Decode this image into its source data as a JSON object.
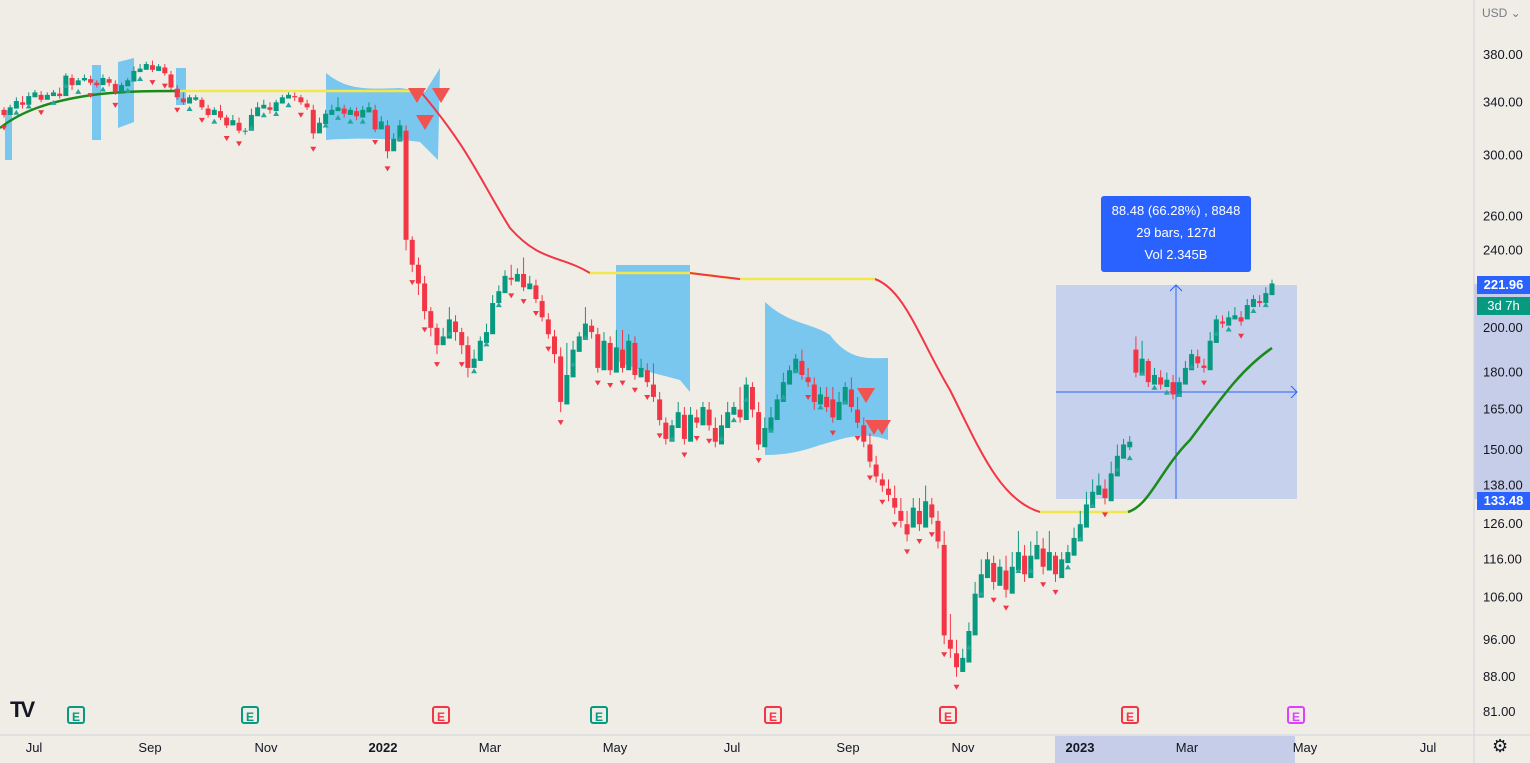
{
  "currency_label": "USD",
  "chart_data": {
    "type": "candlestick",
    "y_ticks": [
      380,
      340,
      300,
      260,
      240,
      200,
      180,
      165,
      150,
      138,
      126,
      116,
      106,
      96,
      88,
      81
    ],
    "y_tick_labels": [
      "380.00",
      "340.00",
      "300.00",
      "260.00",
      "240.00",
      "200.00",
      "180.00",
      "165.00",
      "150.00",
      "138.00",
      "126.00",
      "116.00",
      "106.00",
      "96.00",
      "88.00",
      "81.00"
    ],
    "x_ticks": [
      "Jul",
      "Sep",
      "Nov",
      "2022",
      "Mar",
      "May",
      "Jul",
      "Sep",
      "Nov",
      "2023",
      "Mar",
      "May",
      "Jul"
    ],
    "last_price": "221.96",
    "countdown": "3d 7h",
    "range_low_label": "133.48",
    "measure": {
      "line1": "88.48 (66.28%) , 8848",
      "line2": "29 bars, 127d",
      "line3": "Vol 2.345B",
      "from": 133.48,
      "to": 221.96
    },
    "earnings_markers": [
      "E",
      "E",
      "E",
      "E",
      "E",
      "E",
      "E",
      "E"
    ],
    "candles": [
      [
        334,
        330,
        328,
        336
      ],
      [
        330,
        336,
        333,
        338
      ],
      [
        335,
        341,
        338,
        344
      ],
      [
        340,
        338,
        335,
        345
      ],
      [
        338,
        345,
        343,
        348
      ],
      [
        344,
        348,
        346,
        350
      ],
      [
        346,
        342,
        340,
        349
      ],
      [
        342,
        346,
        343,
        348
      ],
      [
        345,
        348,
        346,
        350
      ],
      [
        347,
        345,
        343,
        352
      ],
      [
        345,
        362,
        360,
        364
      ],
      [
        360,
        354,
        350,
        363
      ],
      [
        354,
        358,
        355,
        360
      ],
      [
        358,
        360,
        357,
        363
      ],
      [
        359,
        356,
        354,
        362
      ],
      [
        356,
        354,
        352,
        358
      ],
      [
        354,
        360,
        357,
        363
      ],
      [
        359,
        356,
        353,
        361
      ],
      [
        355,
        348,
        346,
        358
      ],
      [
        348,
        354,
        352,
        356
      ],
      [
        353,
        358,
        356,
        360
      ],
      [
        357,
        366,
        363,
        370
      ],
      [
        365,
        368,
        366,
        372
      ],
      [
        367,
        372,
        369,
        374
      ],
      [
        371,
        367,
        365,
        375
      ],
      [
        366,
        370,
        368,
        372
      ],
      [
        369,
        364,
        362,
        372
      ],
      [
        363,
        352,
        350,
        366
      ],
      [
        351,
        344,
        342,
        354
      ],
      [
        343,
        340,
        338,
        348
      ],
      [
        339,
        344,
        341,
        346
      ],
      [
        342,
        344,
        341,
        346
      ],
      [
        342,
        336,
        334,
        344
      ],
      [
        335,
        330,
        328,
        338
      ],
      [
        330,
        334,
        331,
        336
      ],
      [
        333,
        328,
        326,
        338
      ],
      [
        328,
        322,
        320,
        330
      ],
      [
        322,
        326,
        324,
        330
      ],
      [
        324,
        318,
        316,
        328
      ],
      [
        318,
        318,
        315,
        320
      ],
      [
        318,
        330,
        326,
        335
      ],
      [
        329,
        336,
        333,
        340
      ],
      [
        335,
        338,
        336,
        342
      ],
      [
        336,
        334,
        331,
        340
      ],
      [
        333,
        340,
        337,
        342
      ],
      [
        339,
        344,
        341,
        346
      ],
      [
        343,
        346,
        344,
        348
      ],
      [
        345,
        344,
        341,
        348
      ],
      [
        344,
        340,
        338,
        346
      ],
      [
        339,
        336,
        334,
        342
      ],
      [
        334,
        316,
        312,
        338
      ],
      [
        316,
        324,
        321,
        328
      ],
      [
        323,
        331,
        328,
        334
      ],
      [
        330,
        334,
        331,
        338
      ],
      [
        333,
        336,
        334,
        344
      ],
      [
        335,
        331,
        328,
        338
      ],
      [
        330,
        334,
        331,
        336
      ],
      [
        333,
        329,
        326,
        336
      ],
      [
        328,
        334,
        331,
        337
      ],
      [
        332,
        336,
        334,
        340
      ],
      [
        334,
        319,
        317,
        338
      ],
      [
        319,
        325,
        322,
        329
      ],
      [
        322,
        303,
        298,
        326
      ],
      [
        303,
        312,
        309,
        316
      ],
      [
        310,
        322,
        318,
        326
      ],
      [
        318,
        246,
        240,
        322
      ],
      [
        246,
        232,
        228,
        248
      ],
      [
        232,
        222,
        216,
        236
      ],
      [
        222,
        208,
        204,
        226
      ],
      [
        208,
        200,
        196,
        210
      ],
      [
        200,
        192,
        188,
        202
      ],
      [
        192,
        196,
        194,
        200
      ],
      [
        195,
        204,
        201,
        210
      ],
      [
        203,
        198,
        194,
        206
      ],
      [
        198,
        192,
        188,
        200
      ],
      [
        192,
        182,
        178,
        196
      ],
      [
        182,
        186,
        184,
        190
      ],
      [
        185,
        194,
        191,
        196
      ],
      [
        193,
        198,
        196,
        202
      ],
      [
        197,
        212,
        209,
        216
      ],
      [
        212,
        218,
        215,
        221
      ],
      [
        217,
        226,
        223,
        229
      ],
      [
        225,
        224,
        221,
        232
      ],
      [
        223,
        227,
        225,
        230
      ],
      [
        227,
        220,
        218,
        236
      ],
      [
        219,
        222,
        219,
        226
      ],
      [
        221,
        214,
        212,
        224
      ],
      [
        213,
        205,
        203,
        216
      ],
      [
        204,
        197,
        195,
        207
      ],
      [
        196,
        188,
        184,
        199
      ],
      [
        187,
        168,
        164,
        191
      ],
      [
        167,
        179,
        176,
        193
      ],
      [
        178,
        190,
        187,
        194
      ],
      [
        189,
        196,
        193,
        198
      ],
      [
        195,
        202,
        199,
        210
      ],
      [
        201,
        198,
        195,
        204
      ],
      [
        197,
        182,
        180,
        200
      ],
      [
        181,
        194,
        191,
        198
      ],
      [
        193,
        181,
        179,
        196
      ],
      [
        180,
        191,
        188,
        199
      ],
      [
        190,
        182,
        180,
        199
      ],
      [
        181,
        194,
        191,
        197
      ],
      [
        193,
        179,
        177,
        196
      ],
      [
        178,
        182,
        179,
        186
      ],
      [
        181,
        176,
        174,
        184
      ],
      [
        175,
        170,
        168,
        184
      ],
      [
        169,
        161,
        159,
        172
      ],
      [
        160,
        154,
        152,
        162
      ],
      [
        153,
        159,
        157,
        161
      ],
      [
        158,
        164,
        161,
        168
      ],
      [
        163,
        154,
        152,
        166
      ],
      [
        153,
        163,
        161,
        166
      ],
      [
        162,
        160,
        158,
        165
      ],
      [
        159,
        166,
        163,
        168
      ],
      [
        165,
        159,
        157,
        168
      ],
      [
        158,
        153,
        151,
        162
      ],
      [
        152,
        159,
        157,
        163
      ],
      [
        158,
        164,
        162,
        168
      ],
      [
        163,
        166,
        164,
        168
      ],
      [
        165,
        162,
        160,
        174
      ],
      [
        161,
        175,
        172,
        178
      ],
      [
        174,
        165,
        162,
        176
      ],
      [
        164,
        152,
        150,
        168
      ],
      [
        151,
        158,
        156,
        162
      ],
      [
        157,
        162,
        160,
        166
      ],
      [
        161,
        169,
        166,
        171
      ],
      [
        168,
        176,
        173,
        180
      ],
      [
        175,
        181,
        178,
        183
      ],
      [
        180,
        186,
        184,
        188
      ],
      [
        185,
        179,
        177,
        190
      ],
      [
        178,
        176,
        174,
        182
      ],
      [
        175,
        168,
        165,
        178
      ],
      [
        167,
        171,
        169,
        174
      ],
      [
        170,
        166,
        164,
        174
      ],
      [
        169,
        162,
        160,
        174
      ],
      [
        161,
        168,
        166,
        172
      ],
      [
        167,
        174,
        171,
        176
      ],
      [
        173,
        166,
        164,
        178
      ],
      [
        165,
        160,
        158,
        170
      ],
      [
        159,
        153,
        151,
        162
      ],
      [
        152,
        146,
        144,
        156
      ],
      [
        145,
        141,
        139,
        148
      ],
      [
        140,
        138,
        136,
        142
      ],
      [
        137,
        135,
        133,
        140
      ],
      [
        134,
        131,
        129,
        138
      ],
      [
        130,
        127,
        125,
        134
      ],
      [
        126,
        123,
        121,
        130
      ],
      [
        125,
        131,
        128,
        134
      ],
      [
        130,
        126,
        124,
        134
      ],
      [
        125,
        133,
        130,
        138
      ],
      [
        132,
        128,
        126,
        134
      ],
      [
        127,
        121,
        119,
        130
      ],
      [
        120,
        97,
        95,
        124
      ],
      [
        96,
        94,
        92,
        102
      ],
      [
        93,
        90,
        88,
        96
      ],
      [
        89,
        92,
        90,
        94
      ],
      [
        91,
        98,
        96,
        100
      ],
      [
        97,
        107,
        104,
        110
      ],
      [
        106,
        112,
        109,
        116
      ],
      [
        111,
        116,
        113,
        118
      ],
      [
        115,
        110,
        108,
        117
      ],
      [
        109,
        114,
        112,
        116
      ],
      [
        113,
        108,
        106,
        117
      ],
      [
        107,
        114,
        112,
        118
      ],
      [
        113,
        118,
        115,
        124
      ],
      [
        117,
        112,
        110,
        120
      ],
      [
        111,
        117,
        115,
        121
      ],
      [
        116,
        120,
        118,
        124
      ],
      [
        119,
        114,
        112,
        122
      ],
      [
        113,
        118,
        116,
        124
      ],
      [
        117,
        112,
        110,
        118
      ],
      [
        111,
        116,
        114,
        118
      ],
      [
        115,
        118,
        116,
        120
      ],
      [
        117,
        122,
        120,
        125
      ],
      [
        121,
        126,
        124,
        130
      ],
      [
        125,
        132,
        129,
        136
      ],
      [
        131,
        136,
        134,
        140
      ],
      [
        135,
        138,
        136,
        142
      ],
      [
        137,
        134,
        132,
        140
      ],
      [
        133,
        142,
        140,
        146
      ],
      [
        141,
        148,
        146,
        152
      ],
      [
        147,
        152,
        150,
        154
      ],
      [
        151,
        153,
        150,
        155
      ],
      [
        190,
        180,
        178,
        196
      ],
      [
        179,
        186,
        183,
        194
      ],
      [
        185,
        176,
        174,
        186
      ],
      [
        175,
        179,
        177,
        182
      ],
      [
        178,
        175,
        173,
        181
      ],
      [
        174,
        177,
        175,
        180
      ],
      [
        176,
        171,
        169,
        179
      ],
      [
        170,
        176,
        174,
        178
      ],
      [
        175,
        182,
        180,
        185
      ],
      [
        181,
        188,
        186,
        190
      ],
      [
        187,
        184,
        182,
        190
      ],
      [
        183,
        182,
        180,
        186
      ],
      [
        181,
        194,
        191,
        198
      ],
      [
        193,
        204,
        201,
        206
      ],
      [
        203,
        202,
        200,
        206
      ],
      [
        201,
        205,
        203,
        208
      ],
      [
        204,
        206,
        204,
        210
      ],
      [
        205,
        203,
        201,
        208
      ],
      [
        204,
        211,
        209,
        214
      ],
      [
        210,
        214,
        212,
        216
      ],
      [
        213,
        212,
        210,
        216
      ],
      [
        212,
        217,
        215,
        220
      ],
      [
        216,
        222,
        220,
        224
      ]
    ]
  }
}
